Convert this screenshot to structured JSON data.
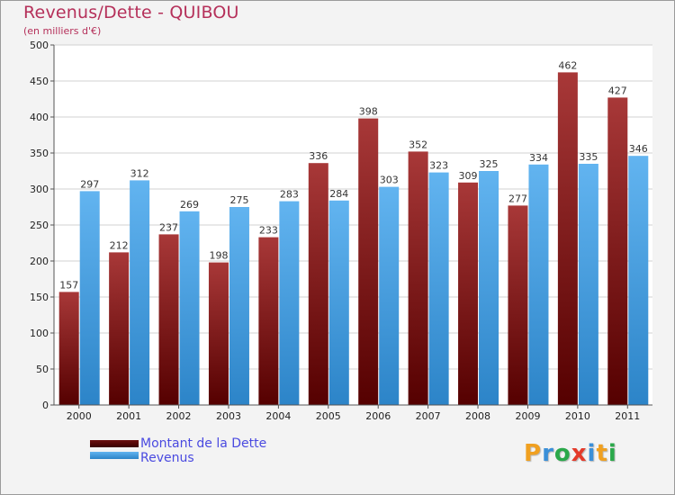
{
  "header": {
    "title": "Revenus/Dette - QUIBOU",
    "subtitle": "(en milliers d'€)"
  },
  "legend": {
    "items": [
      {
        "label": "Montant de la Dette",
        "color": "#6b0f0f"
      },
      {
        "label": "Revenus",
        "color": "#3a9ce0"
      }
    ]
  },
  "logo": {
    "text": "Proxiti",
    "colors": [
      "#f0a020",
      "#3a8fd8",
      "#2aa84a",
      "#e43a2a",
      "#3a8fd8",
      "#f0a020",
      "#2aa84a"
    ]
  },
  "chart_data": {
    "type": "bar",
    "title": "Revenus/Dette - QUIBOU",
    "ylabel": "(en milliers d'€)",
    "xlabel": "",
    "categories": [
      "2000",
      "2001",
      "2002",
      "2003",
      "2004",
      "2005",
      "2006",
      "2007",
      "2008",
      "2009",
      "2010",
      "2011"
    ],
    "ylim": [
      0,
      500
    ],
    "yticks": [
      0,
      50,
      100,
      150,
      200,
      250,
      300,
      350,
      400,
      450,
      500
    ],
    "grid": true,
    "legend_position": "bottom-left",
    "series": [
      {
        "name": "Montant de la Dette",
        "color_top": "#a83838",
        "color_bottom": "#550000",
        "values": [
          157,
          212,
          237,
          198,
          233,
          336,
          398,
          352,
          309,
          277,
          462,
          427
        ]
      },
      {
        "name": "Revenus",
        "color_top": "#62b4f0",
        "color_bottom": "#2c84c8",
        "values": [
          297,
          312,
          269,
          275,
          283,
          284,
          303,
          323,
          325,
          334,
          335,
          346
        ]
      }
    ]
  }
}
